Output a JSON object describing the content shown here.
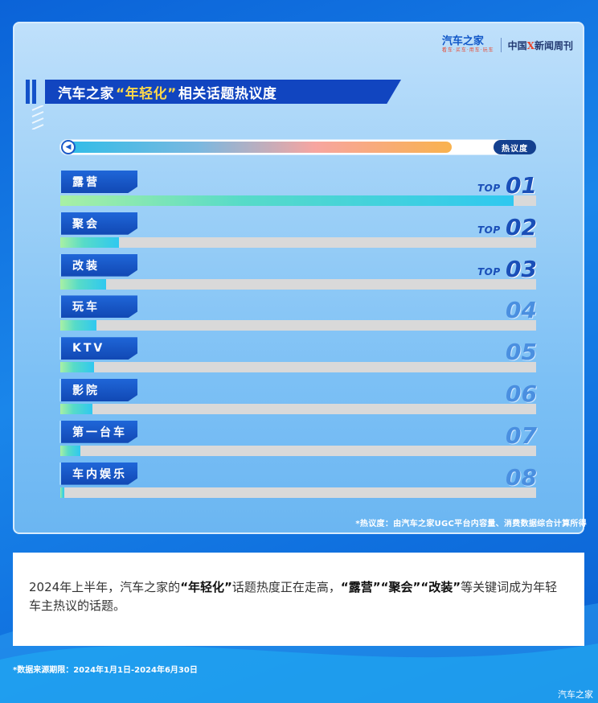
{
  "header": {
    "brand": "汽车之家",
    "brand_sub": "看车·买车·用车·玩车",
    "partner_a": "中国",
    "partner_x": "X",
    "partner_b": "新闻周刊"
  },
  "title": {
    "prefix": "汽车之家",
    "highlight": "“年轻化”",
    "suffix": "相关话题热议度"
  },
  "legend": {
    "label": "热议度"
  },
  "chart_data": {
    "type": "bar",
    "title": "汽车之家“年轻化”相关话题热议度",
    "categories": [
      "露营",
      "聚会",
      "改装",
      "玩车",
      "KTV",
      "影院",
      "第一台车",
      "车内娱乐"
    ],
    "series": [
      {
        "values": [
          95.3,
          12.4,
          9.6,
          7.6,
          7.1,
          6.7,
          4.2,
          0.9
        ]
      }
    ],
    "ranks": [
      "01",
      "02",
      "03",
      "04",
      "05",
      "06",
      "07",
      "08"
    ],
    "top_prefix": "TOP",
    "top_count": 3,
    "ylim": [
      0,
      100
    ]
  },
  "panel_note": "*热议度：由汽车之家UGC平台内容量、消费数据综合计算所得",
  "summary": {
    "part1": "2024年上半年，汽车之家的",
    "bold1": "“年轻化”",
    "part2": "话题热度正在走高，",
    "bold2": "“露营”“聚会”“改装”",
    "part3": "等关键词成为年轻车主热议的话题。"
  },
  "footnote": "*数据来源期限：2024年1月1日-2024年6月30日",
  "watermark": "汽车之家",
  "colors": {
    "accent": "#1145c0",
    "highlight": "#ffd84a",
    "bar_start": "#a8f0a4",
    "bar_end": "#2fc8f0",
    "track": "#d9d9d9"
  }
}
